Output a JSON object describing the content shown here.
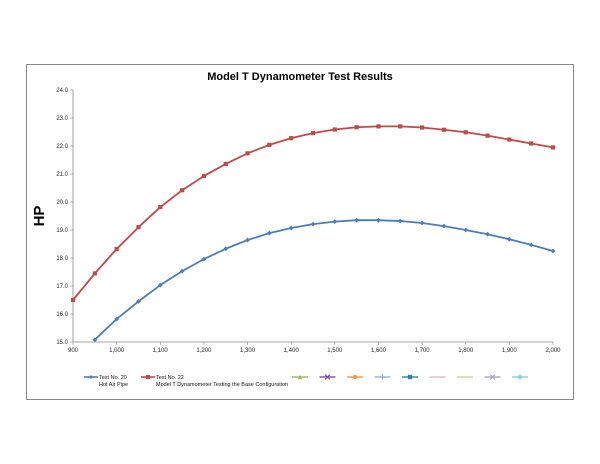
{
  "chart_data": {
    "type": "line",
    "title": "Model T Dynamometer Test Results",
    "xlabel": "",
    "ylabel": "HP",
    "xlim": [
      900,
      2000
    ],
    "ylim": [
      15.0,
      24.0
    ],
    "x_ticks": [
      "900",
      "1,000",
      "1,100",
      "1,200",
      "1,300",
      "1,400",
      "1,500",
      "1,600",
      "1,700",
      "1,800",
      "1,900",
      "2,000"
    ],
    "y_ticks": [
      "15.0",
      "16.0",
      "17.0",
      "18.0",
      "19.0",
      "20.0",
      "21.0",
      "22.0",
      "23.0",
      "24.0"
    ],
    "grid": false,
    "legend_position": "bottom",
    "series": [
      {
        "name": "Test No. 20",
        "sub_label": "Hot Air Pipe",
        "color": "#4a7ebb",
        "marker": "diamond",
        "x": [
          950,
          1000,
          1050,
          1100,
          1150,
          1200,
          1250,
          1300,
          1350,
          1400,
          1450,
          1500,
          1550,
          1600,
          1650,
          1700,
          1750,
          1800,
          1850,
          1900,
          1950,
          2000
        ],
        "values": [
          15.08,
          15.82,
          16.45,
          17.03,
          17.53,
          17.96,
          18.33,
          18.64,
          18.89,
          19.07,
          19.21,
          19.3,
          19.35,
          19.35,
          19.32,
          19.25,
          19.14,
          19.0,
          18.85,
          18.67,
          18.47,
          18.25
        ]
      },
      {
        "name": "Test No. 22",
        "sub_label": "Model T Dynamometer Testing the Base Configuration",
        "color": "#be4b48",
        "marker": "square",
        "x": [
          900,
          950,
          1000,
          1050,
          1100,
          1150,
          1200,
          1250,
          1300,
          1350,
          1400,
          1450,
          1500,
          1550,
          1600,
          1650,
          1700,
          1750,
          1800,
          1850,
          1900,
          1950,
          2000
        ],
        "values": [
          16.5,
          17.45,
          18.32,
          19.1,
          19.82,
          20.42,
          20.93,
          21.36,
          21.74,
          22.04,
          22.28,
          22.46,
          22.59,
          22.67,
          22.7,
          22.7,
          22.66,
          22.58,
          22.49,
          22.37,
          22.23,
          22.09,
          21.95
        ]
      }
    ],
    "legend_extra_markers": [
      {
        "color": "#9bbb59",
        "marker": "triangle"
      },
      {
        "color": "#7e4fa0",
        "marker": "x"
      },
      {
        "color": "#f79646",
        "marker": "circle"
      },
      {
        "color": "#8eb4e3",
        "marker": "plus"
      },
      {
        "color": "#31859c",
        "marker": "square"
      },
      {
        "color": "#e6b9b8",
        "marker": "line"
      },
      {
        "color": "#c3d69b",
        "marker": "line"
      },
      {
        "color": "#b3a2c7",
        "marker": "x"
      },
      {
        "color": "#93cddd",
        "marker": "circle"
      }
    ]
  }
}
